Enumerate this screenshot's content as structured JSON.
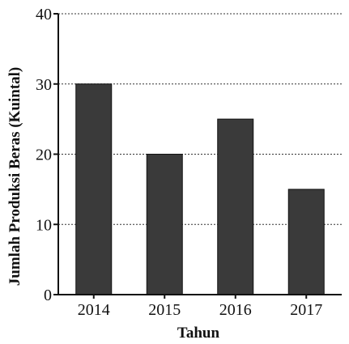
{
  "chart_data": {
    "type": "bar",
    "title": "",
    "xlabel": "Tahun",
    "ylabel": "Jumlah Produksi Beras (Kuintal)",
    "categories": [
      "2014",
      "2015",
      "2016",
      "2017"
    ],
    "values": [
      30,
      20,
      25,
      15
    ],
    "ylim": [
      0,
      40
    ],
    "yticks": [
      0,
      10,
      20,
      30,
      40
    ],
    "grid": "horizontal-dotted",
    "bar_color": "#3a3a3a",
    "legend": "none"
  }
}
